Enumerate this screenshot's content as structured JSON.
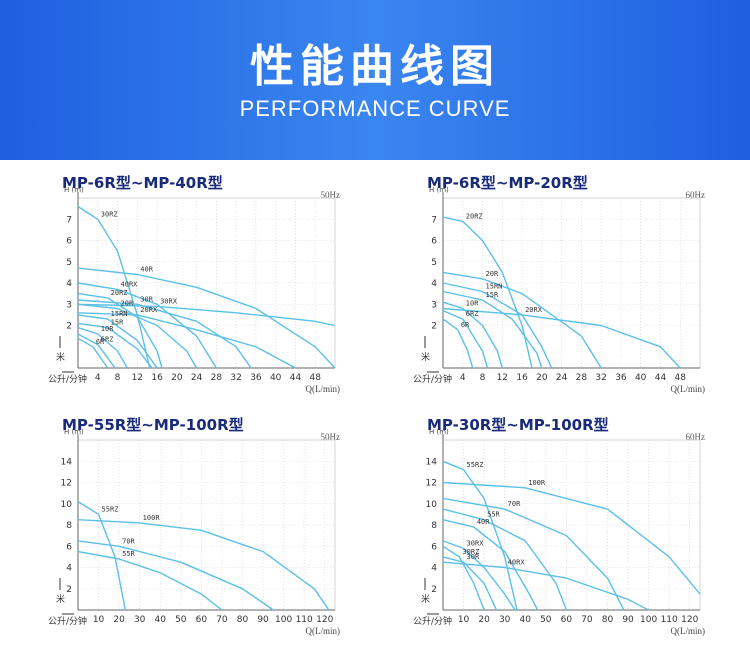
{
  "banner": {
    "title": "性能曲线图",
    "subtitle": "PERFORMANCE CURVE",
    "bg_color": "#2e78ea"
  },
  "colors": {
    "curve": "#5bc0e8",
    "title": "#1a2a7a",
    "axis": "#666666",
    "grid": "#d0d0d0"
  },
  "charts": [
    {
      "title": "MP-6R型~MP-40R型",
      "freq": "50Hz",
      "xlabel": "Q(L/min)",
      "ylabel": "H\n(m)",
      "y_unit": "米",
      "x_unit": "公升/分钟"
    },
    {
      "title": "MP-6R型~MP-20R型",
      "freq": "60Hz",
      "xlabel": "Q(L/min)",
      "ylabel": "H\n(m)",
      "y_unit": "米",
      "x_unit": "公升/分钟"
    },
    {
      "title": "MP-55R型~MP-100R型",
      "freq": "50Hz",
      "xlabel": "Q(L/min)",
      "ylabel": "H\n(m)",
      "y_unit": "米",
      "x_unit": "公升/分钟"
    },
    {
      "title": "MP-30R型~MP-100R型",
      "freq": "60Hz",
      "xlabel": "Q(L/min)",
      "ylabel": "H\n(m)",
      "y_unit": "米",
      "x_unit": "公升/分钟"
    }
  ],
  "chart_data": [
    {
      "type": "line",
      "title": "MP-6R型~MP-40R型",
      "xlabel": "Q(L/min)",
      "ylabel": "H (m)",
      "xlim": [
        0,
        52
      ],
      "ylim": [
        0,
        8
      ],
      "xticks": [
        4,
        8,
        12,
        16,
        20,
        24,
        28,
        32,
        36,
        40,
        44,
        48
      ],
      "yticks": [
        2,
        3,
        4,
        5,
        6,
        7
      ],
      "series": [
        {
          "name": "30RZ",
          "x": [
            0,
            4,
            8,
            12,
            14.5
          ],
          "y": [
            7.6,
            7.0,
            5.5,
            2.5,
            0
          ]
        },
        {
          "name": "40R",
          "x": [
            0,
            12,
            24,
            36,
            48,
            52
          ],
          "y": [
            4.7,
            4.4,
            3.8,
            2.8,
            1.0,
            0
          ]
        },
        {
          "name": "40RX",
          "x": [
            0,
            8,
            16,
            24,
            28
          ],
          "y": [
            4.0,
            3.7,
            3.0,
            1.5,
            0
          ]
        },
        {
          "name": "20RZ",
          "x": [
            0,
            6,
            12,
            16,
            17
          ],
          "y": [
            3.5,
            3.3,
            2.4,
            0.8,
            0
          ]
        },
        {
          "name": "30RX",
          "x": [
            0,
            16,
            32,
            48,
            52
          ],
          "y": [
            3.0,
            2.9,
            2.6,
            2.2,
            2.0
          ]
        },
        {
          "name": "30R",
          "x": [
            0,
            12,
            24,
            32,
            35
          ],
          "y": [
            3.2,
            3.0,
            2.2,
            1.0,
            0
          ]
        },
        {
          "name": "20RX",
          "x": [
            0,
            12,
            24,
            36,
            44
          ],
          "y": [
            2.6,
            2.5,
            1.8,
            1.0,
            0
          ]
        },
        {
          "name": "20R",
          "x": [
            0,
            8,
            16,
            22,
            24
          ],
          "y": [
            3.0,
            2.8,
            2.0,
            0.8,
            0
          ]
        },
        {
          "name": "15RN",
          "x": [
            0,
            6,
            12,
            16
          ],
          "y": [
            2.5,
            2.3,
            1.3,
            0
          ]
        },
        {
          "name": "15R",
          "x": [
            0,
            6,
            12,
            15
          ],
          "y": [
            2.1,
            1.9,
            0.9,
            0
          ]
        },
        {
          "name": "10R",
          "x": [
            0,
            4,
            8,
            10
          ],
          "y": [
            1.9,
            1.6,
            0.8,
            0
          ]
        },
        {
          "name": "6RZ",
          "x": [
            0,
            4,
            7.5
          ],
          "y": [
            1.6,
            1.1,
            0
          ]
        },
        {
          "name": "6R",
          "x": [
            0,
            3,
            6
          ],
          "y": [
            1.4,
            1.0,
            0
          ]
        }
      ]
    },
    {
      "type": "line",
      "title": "MP-6R型~MP-20R型",
      "xlabel": "Q(L/min)",
      "ylabel": "H (m)",
      "xlim": [
        0,
        52
      ],
      "ylim": [
        0,
        8
      ],
      "xticks": [
        4,
        8,
        12,
        16,
        20,
        24,
        28,
        32,
        36,
        40,
        44,
        48
      ],
      "yticks": [
        2,
        3,
        4,
        5,
        6,
        7
      ],
      "series": [
        {
          "name": "20RZ",
          "x": [
            0,
            4,
            8,
            12,
            16,
            18
          ],
          "y": [
            7.1,
            6.9,
            6.0,
            4.5,
            2.0,
            0
          ]
        },
        {
          "name": "20RX",
          "x": [
            0,
            16,
            32,
            44,
            48
          ],
          "y": [
            2.8,
            2.5,
            2.0,
            1.0,
            0
          ]
        },
        {
          "name": "20R",
          "x": [
            0,
            8,
            16,
            28,
            32
          ],
          "y": [
            4.5,
            4.2,
            3.5,
            1.5,
            0
          ]
        },
        {
          "name": "15RN",
          "x": [
            0,
            8,
            16,
            20,
            22
          ],
          "y": [
            4.0,
            3.6,
            2.5,
            1.0,
            0
          ]
        },
        {
          "name": "15R",
          "x": [
            0,
            8,
            14,
            19,
            20
          ],
          "y": [
            3.6,
            3.2,
            2.3,
            0.7,
            0
          ]
        },
        {
          "name": "10R",
          "x": [
            0,
            4,
            8,
            11,
            12
          ],
          "y": [
            3.1,
            2.8,
            2.0,
            0.8,
            0
          ]
        },
        {
          "name": "6RZ",
          "x": [
            0,
            4,
            8,
            9
          ],
          "y": [
            2.7,
            2.3,
            0.8,
            0
          ]
        },
        {
          "name": "6R",
          "x": [
            0,
            3,
            5,
            6
          ],
          "y": [
            2.3,
            1.8,
            0.8,
            0
          ]
        }
      ]
    },
    {
      "type": "line",
      "title": "MP-55R型~MP-100R型",
      "xlabel": "Q(L/min)",
      "ylabel": "H (m)",
      "xlim": [
        0,
        125
      ],
      "ylim": [
        0,
        16
      ],
      "xticks": [
        10,
        20,
        30,
        40,
        50,
        60,
        70,
        80,
        90,
        100,
        110,
        120
      ],
      "yticks": [
        2,
        4,
        6,
        8,
        10,
        12,
        14
      ],
      "series": [
        {
          "name": "55RZ",
          "x": [
            0,
            10,
            18,
            23
          ],
          "y": [
            10.2,
            9.0,
            5.0,
            0
          ]
        },
        {
          "name": "100R",
          "x": [
            0,
            30,
            60,
            90,
            115,
            122
          ],
          "y": [
            8.5,
            8.2,
            7.5,
            5.5,
            2.0,
            0
          ]
        },
        {
          "name": "70R",
          "x": [
            0,
            20,
            50,
            80,
            95
          ],
          "y": [
            6.5,
            6.0,
            4.5,
            2.0,
            0
          ]
        },
        {
          "name": "55R",
          "x": [
            0,
            20,
            40,
            60,
            70
          ],
          "y": [
            5.5,
            4.8,
            3.5,
            1.5,
            0
          ]
        }
      ]
    },
    {
      "type": "line",
      "title": "MP-30R型~MP-100R型",
      "xlabel": "Q(L/min)",
      "ylabel": "H (m)",
      "xlim": [
        0,
        125
      ],
      "ylim": [
        0,
        16
      ],
      "xticks": [
        10,
        20,
        30,
        40,
        50,
        60,
        70,
        80,
        90,
        100,
        110,
        120
      ],
      "yticks": [
        2,
        4,
        6,
        8,
        10,
        12,
        14
      ],
      "series": [
        {
          "name": "55RZ",
          "x": [
            0,
            10,
            20,
            30,
            36
          ],
          "y": [
            14.0,
            13.2,
            10.5,
            5.0,
            0
          ]
        },
        {
          "name": "100R",
          "x": [
            0,
            40,
            80,
            110,
            125
          ],
          "y": [
            12.0,
            11.5,
            9.5,
            5.0,
            1.5
          ]
        },
        {
          "name": "70R",
          "x": [
            0,
            30,
            60,
            80,
            88
          ],
          "y": [
            10.5,
            9.5,
            7.0,
            3.0,
            0
          ]
        },
        {
          "name": "55R",
          "x": [
            0,
            20,
            40,
            55,
            60
          ],
          "y": [
            9.5,
            8.5,
            6.5,
            2.5,
            0
          ]
        },
        {
          "name": "40R",
          "x": [
            0,
            15,
            30,
            42,
            46
          ],
          "y": [
            8.5,
            7.8,
            5.5,
            1.5,
            0
          ]
        },
        {
          "name": "30RX",
          "x": [
            0,
            10,
            20,
            30,
            35
          ],
          "y": [
            6.5,
            5.8,
            4.0,
            1.5,
            0
          ]
        },
        {
          "name": "30RZ",
          "x": [
            0,
            8,
            15,
            20
          ],
          "y": [
            6.0,
            5.0,
            2.5,
            0
          ]
        },
        {
          "name": "30R",
          "x": [
            0,
            10,
            20,
            26
          ],
          "y": [
            5.0,
            4.5,
            2.5,
            0
          ]
        },
        {
          "name": "40RX",
          "x": [
            0,
            30,
            60,
            90,
            100
          ],
          "y": [
            4.5,
            4.0,
            3.0,
            1.0,
            0
          ]
        }
      ]
    }
  ]
}
